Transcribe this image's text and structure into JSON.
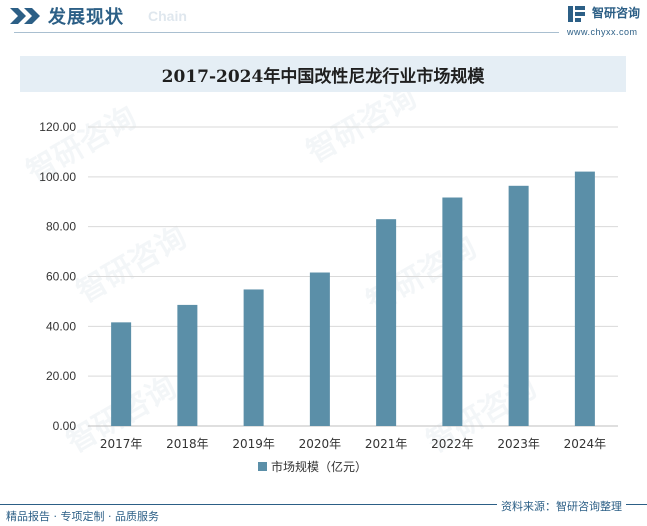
{
  "header": {
    "section_title": "发展现状",
    "section_subtitle": "Chain",
    "brand_name": "智研咨询",
    "brand_url": "www.chyxx.com"
  },
  "colors": {
    "bar": "#5b8fa8",
    "brand": "#2c5f86",
    "title_bg": "#e5eef5"
  },
  "chart_data": {
    "type": "bar",
    "title": "2017-2024年中国改性尼龙行业市场规模",
    "categories": [
      "2017年",
      "2018年",
      "2019年",
      "2020年",
      "2021年",
      "2022年",
      "2023年",
      "2024年"
    ],
    "series": [
      {
        "name": "市场规模（亿元）",
        "values": [
          41.6,
          48.6,
          54.8,
          61.6,
          83.0,
          91.7,
          96.4,
          102.1
        ]
      }
    ],
    "y_ticks": [
      "0.00",
      "20.00",
      "40.00",
      "60.00",
      "80.00",
      "100.00",
      "120.00"
    ],
    "ylim": [
      0,
      120
    ],
    "grid": true,
    "legend_position": "bottom"
  },
  "watermark": "智研咨询",
  "footer": {
    "left": "精品报告 · 专项定制 · 品质服务",
    "source": "资料来源：智研咨询整理"
  }
}
